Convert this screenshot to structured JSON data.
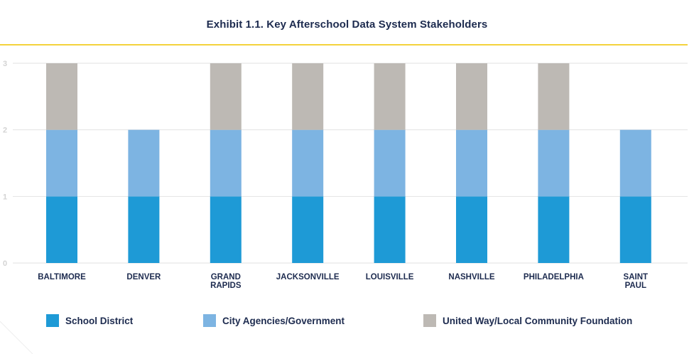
{
  "title": "Exhibit 1.1. Key Afterschool Data System Stakeholders",
  "colors": {
    "school_district": "#1e9ad6",
    "city_agencies": "#7db4e2",
    "united_way": "#bdb9b4",
    "title_rule": "#f4d23c",
    "gridline": "#e2e2e2",
    "tick_text": "#d3d3d3",
    "label_text": "#1d2b4f"
  },
  "legend": {
    "items": [
      {
        "label": "School District",
        "color": "#1e9ad6"
      },
      {
        "label": "City Agencies/Government",
        "color": "#7db4e2"
      },
      {
        "label": "United Way/Local Community Foundation",
        "color": "#bdb9b4"
      }
    ]
  },
  "chart_data": {
    "type": "bar",
    "stacked": true,
    "title": "Exhibit 1.1. Key Afterschool Data System Stakeholders",
    "categories": [
      [
        "BALTIMORE"
      ],
      [
        "DENVER"
      ],
      [
        "GRAND",
        "RAPIDS"
      ],
      [
        "JACKSONVILLE"
      ],
      [
        "LOUISVILLE"
      ],
      [
        "NASHVILLE"
      ],
      [
        "PHILADELPHIA"
      ],
      [
        "SAINT",
        "PAUL"
      ]
    ],
    "series": [
      {
        "name": "School District",
        "color": "#1e9ad6",
        "values": [
          1,
          1,
          1,
          1,
          1,
          1,
          1,
          1
        ]
      },
      {
        "name": "City Agencies/Government",
        "color": "#7db4e2",
        "values": [
          1,
          1,
          1,
          1,
          1,
          1,
          1,
          1
        ]
      },
      {
        "name": "United Way/Local Community Foundation",
        "color": "#bdb9b4",
        "values": [
          1,
          0,
          1,
          1,
          1,
          1,
          1,
          0
        ]
      }
    ],
    "yticks": [
      "0",
      "1",
      "2",
      "3"
    ],
    "ylim": [
      0,
      3
    ],
    "xlabel": "",
    "ylabel": "",
    "grid": true,
    "legend_position": "bottom"
  }
}
